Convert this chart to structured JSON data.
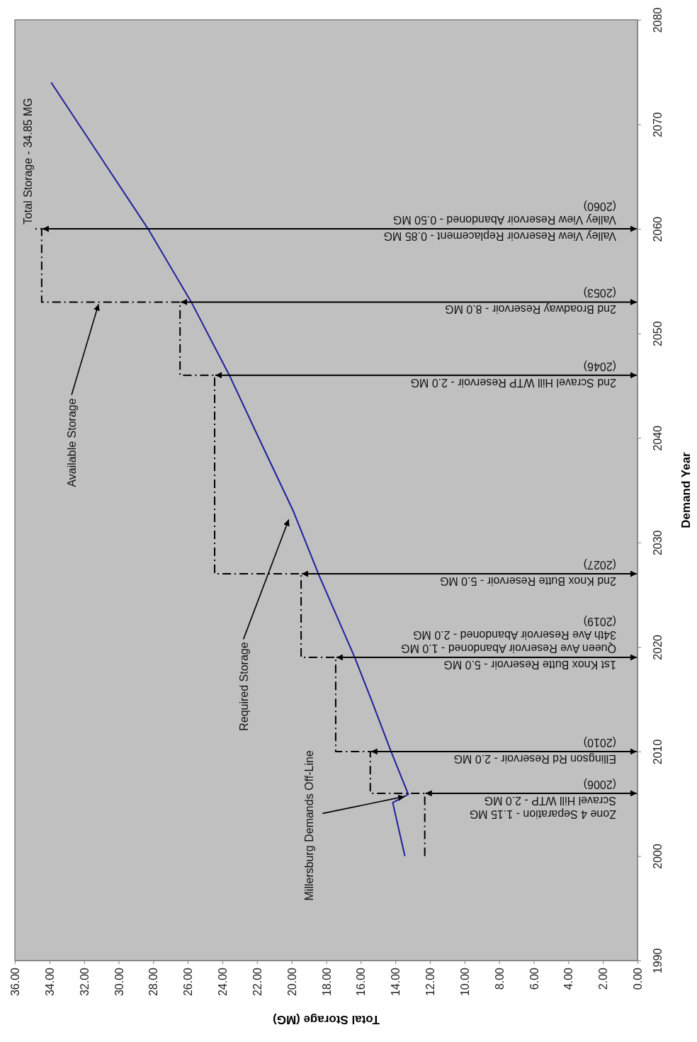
{
  "chart_data": {
    "type": "line",
    "xlabel": "Total Storage (MG)",
    "ylabel": "Demand Year",
    "xlim": [
      36,
      0
    ],
    "xticks": [
      {
        "value": 36,
        "label": "36.00"
      },
      {
        "value": 34,
        "label": "34.00"
      },
      {
        "value": 32,
        "label": "32.00"
      },
      {
        "value": 30,
        "label": "30.00"
      },
      {
        "value": 28,
        "label": "28.00"
      },
      {
        "value": 26,
        "label": "26.00"
      },
      {
        "value": 24,
        "label": "24.00"
      },
      {
        "value": 22,
        "label": "22.00"
      },
      {
        "value": 20,
        "label": "20.00"
      },
      {
        "value": 18,
        "label": "18.00"
      },
      {
        "value": 16,
        "label": "16.00"
      },
      {
        "value": 14,
        "label": "14.00"
      },
      {
        "value": 12,
        "label": "12.00"
      },
      {
        "value": 10,
        "label": "10.00"
      },
      {
        "value": 8,
        "label": "8.00"
      },
      {
        "value": 6,
        "label": "6.00"
      },
      {
        "value": 4,
        "label": "4.00"
      },
      {
        "value": 2,
        "label": "2.00"
      },
      {
        "value": 0,
        "label": "0.00"
      }
    ],
    "ylim": [
      1990,
      2080
    ],
    "yticks": [
      1990,
      2000,
      2010,
      2020,
      2030,
      2040,
      2050,
      2060,
      2070,
      2080
    ],
    "series": [
      {
        "color": "#20209a",
        "line_style": "solid",
        "x": [
          13.45,
          14.15,
          13.25,
          14.25,
          15.4,
          16.35,
          18.45,
          19.9,
          21.9,
          23.6,
          25.8,
          28.3,
          31.1,
          33.9
        ],
        "values": [
          2000,
          2005.1,
          2005.9,
          2010,
          2015,
          2019,
          2027,
          2033,
          2040,
          2046,
          2053,
          2060,
          2067,
          2074
        ]
      },
      {
        "type": "step",
        "color": "#000000",
        "line_style": "dashed",
        "x": [
          12.3,
          15.45,
          17.45,
          19.45,
          24.45,
          26.45,
          34.45,
          34.85
        ],
        "values": [
          2000,
          2006,
          2010,
          2019,
          2027,
          2046,
          2053,
          2060
        ]
      }
    ],
    "annotations": [
      {
        "text": "Total Storage - 34.85 MG",
        "x": 34.85,
        "y": 2060
      },
      {
        "text": "Available Storage",
        "x": 31,
        "y": 2053
      },
      {
        "text": "Required Storage",
        "x": 20,
        "y": 2032.4
      },
      {
        "text": "Millersburg Demands Off-Line",
        "x": 13.3,
        "y": 2005.9
      },
      "Zone 4 Separation - 1.15 MG\nScravel Hill WTP - 2.0 MG",
      "(2006)",
      "Ellingson Rd Reservoir - 2.0 MG",
      "(2010)",
      "1st Knox Butte Reservoir - 5.0 MG",
      "Queen Ave Reservoir Abandoned - 1.0 MG\n34th Ave Reservoir Abandoned - 2.0 MG\n(2019)",
      "2nd Knox Butte Reservoir - 5.0 MG",
      "(2027)",
      "2nd Scravel Hill WTP Reservoir - 2.0 MG",
      "(2046)",
      "2nd Broadway Reservoir - 8.0 MG",
      "(2053)",
      "Valley View Reservoir Replacement - 0.85 MG",
      "Valley View  Reservoir Abandoned - 0.50 MG\n(2060)"
    ]
  }
}
